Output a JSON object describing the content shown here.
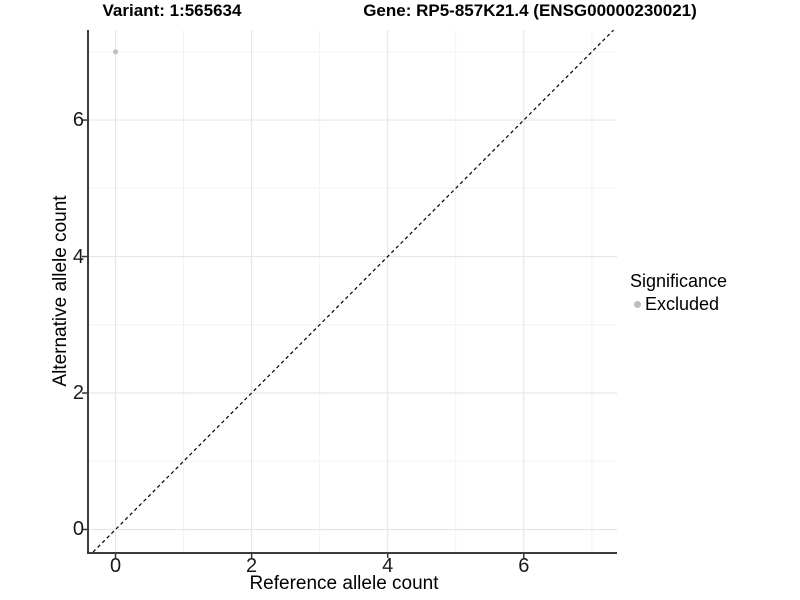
{
  "titles": {
    "variant": "Variant: 1:565634",
    "gene": "Gene: RP5-857K21.4 (ENSG00000230021)"
  },
  "chart_data": {
    "type": "scatter",
    "title_left": "Variant: 1:565634",
    "title_right": "Gene: RP5-857K21.4 (ENSG00000230021)",
    "xlabel": "Reference allele count",
    "ylabel": "Alternative allele count",
    "xlim": [
      -0.39,
      7.37
    ],
    "ylim": [
      -0.33,
      7.32
    ],
    "x_ticks": [
      0,
      2,
      4,
      6
    ],
    "y_ticks": [
      0,
      2,
      4,
      6
    ],
    "x_minor_gridlines": [
      1,
      3,
      5,
      7
    ],
    "y_minor_gridlines": [
      1,
      3,
      5,
      7
    ],
    "grid": "major+minor",
    "points": [
      {
        "x": 0,
        "y": 7,
        "series": "Excluded",
        "color": "#bebebe"
      }
    ],
    "reference_line": {
      "type": "identity",
      "slope": 1,
      "intercept": 0,
      "style": "dashed",
      "color": "#000000"
    },
    "legend": {
      "title": "Significance",
      "position": "right",
      "entries": [
        {
          "label": "Excluded",
          "color": "#bebebe"
        }
      ]
    }
  },
  "colors": {
    "background": "#ffffff",
    "grid_major": "#e6e6e6",
    "grid_minor": "#f2f2f2",
    "axis_line": "#3c3c3c",
    "tick_mark": "#333333",
    "tick_label": "#1a1a1a",
    "title": "#000000",
    "point": "#bebebe"
  }
}
